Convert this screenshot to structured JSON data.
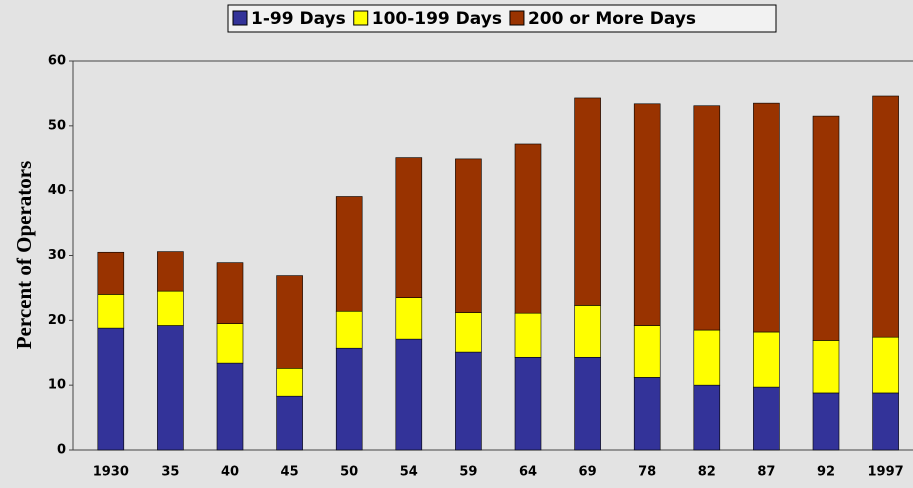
{
  "chart_data": {
    "type": "stacked_bar",
    "y_label": "Percent of Operators",
    "categories": [
      "1930",
      "35",
      "40",
      "45",
      "50",
      "54",
      "59",
      "64",
      "69",
      "78",
      "82",
      "87",
      "92",
      "1997"
    ],
    "series": [
      {
        "name": "1-99 Days",
        "color": "#333399",
        "values": [
          18.8,
          19.2,
          13.4,
          8.3,
          15.7,
          17.1,
          15.1,
          14.3,
          14.3,
          11.2,
          10.0,
          9.7,
          8.8,
          8.8
        ]
      },
      {
        "name": "100-199 Days",
        "color": "#ffff00",
        "values": [
          5.2,
          5.3,
          6.1,
          4.3,
          5.7,
          6.4,
          6.1,
          6.8,
          8.0,
          8.0,
          8.5,
          8.5,
          8.1,
          8.6
        ]
      },
      {
        "name": "200 or More Days",
        "color": "#993300",
        "values": [
          6.5,
          6.1,
          9.4,
          14.3,
          17.7,
          21.6,
          23.7,
          26.1,
          32.0,
          34.2,
          34.6,
          35.3,
          34.6,
          37.2
        ]
      }
    ],
    "ylim": [
      0,
      60
    ],
    "yticks": [
      0,
      10,
      20,
      30,
      40,
      50,
      60
    ],
    "grid": false,
    "legend": "top"
  }
}
